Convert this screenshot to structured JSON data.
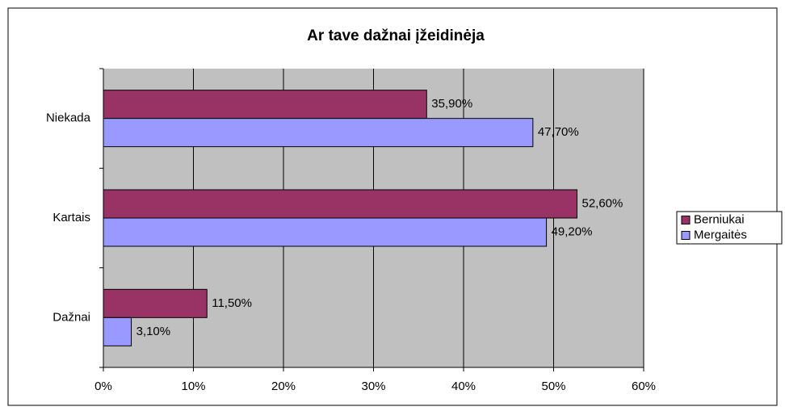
{
  "chart_data": {
    "type": "hbar",
    "title": "Ar tave dažnai įžeidinėja",
    "categories": [
      "Niekada",
      "Kartais",
      "Dažnai"
    ],
    "series": [
      {
        "name": "Berniukai",
        "color": "#993366",
        "values": [
          35.9,
          52.6,
          11.5
        ],
        "value_labels": [
          "35,90%",
          "52,60%",
          "11,50%"
        ]
      },
      {
        "name": "Mergaitės",
        "color": "#9999ff",
        "values": [
          47.7,
          49.2,
          3.1
        ],
        "value_labels": [
          "47,70%",
          "49,20%",
          "3,10%"
        ]
      }
    ],
    "xlim": [
      0,
      60
    ],
    "xticks": [
      {
        "value": 0,
        "label": "0%"
      },
      {
        "value": 10,
        "label": "10%"
      },
      {
        "value": 20,
        "label": "20%"
      },
      {
        "value": 30,
        "label": "30%"
      },
      {
        "value": 40,
        "label": "40%"
      },
      {
        "value": 50,
        "label": "50%"
      },
      {
        "value": 60,
        "label": "60%"
      }
    ],
    "grid": true,
    "legend": "right"
  }
}
